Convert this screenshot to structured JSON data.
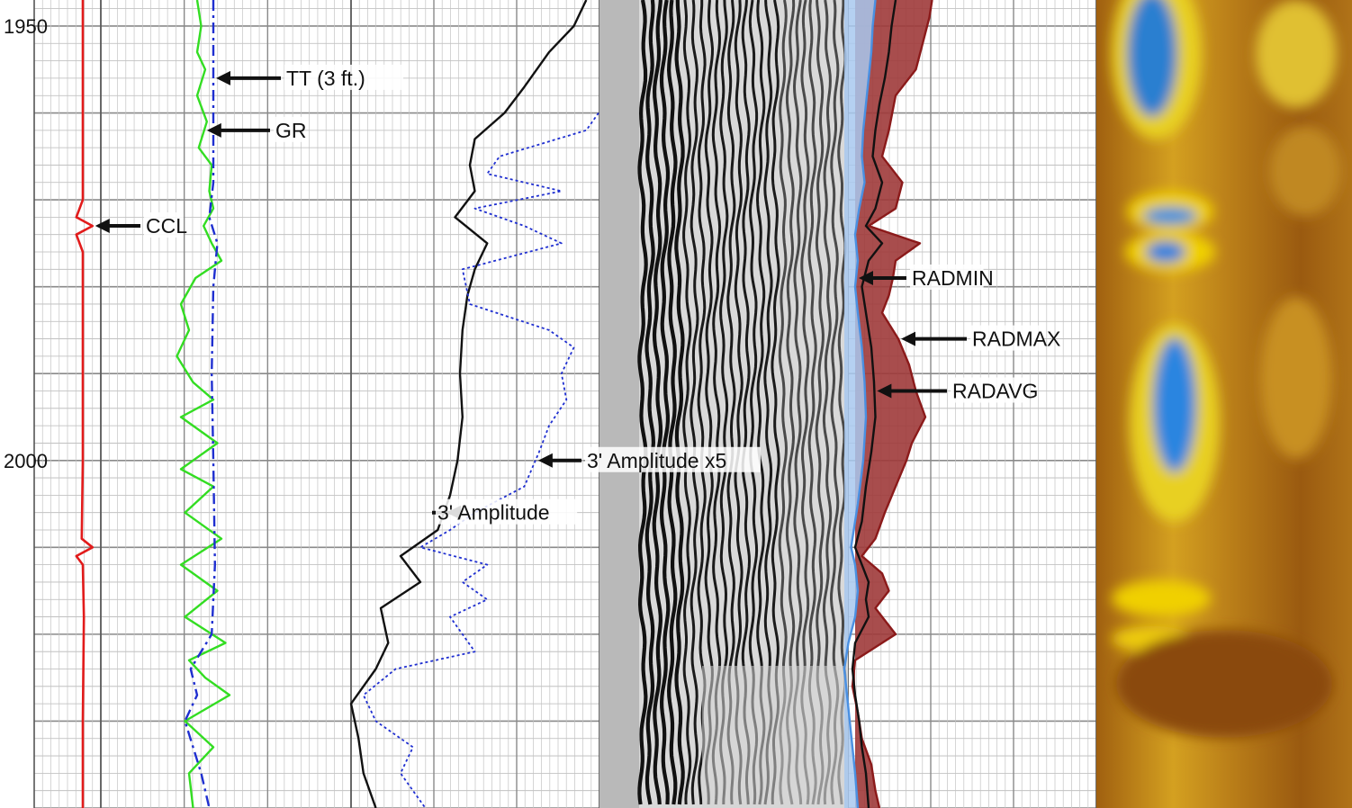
{
  "chart_data": {
    "type": "line",
    "y_axis": {
      "unit": "",
      "range": [
        1947,
        2040
      ],
      "reversed": true,
      "tick_labels": [
        "1950",
        "2000"
      ],
      "ticks": [
        1950,
        2000
      ]
    },
    "grid": true,
    "tracks": [
      {
        "curves": [
          {
            "name": "CCL",
            "color": "#e21b1b",
            "style": "solid",
            "depth": [
              1947,
              1970,
              1972,
              1973,
              1974,
              1976,
              2000,
              2009,
              2010,
              2011,
              2012,
              2018,
              2030,
              2040
            ],
            "value": [
              0.5,
              0.5,
              0.2,
              0.95,
              0.2,
              0.5,
              0.5,
              0.45,
              0.95,
              0.2,
              0.5,
              0.55,
              0.5,
              0.5
            ]
          }
        ]
      },
      {
        "curves": [
          {
            "name": "GR",
            "color": "#33dd22",
            "style": "solid",
            "depth": [
              1947,
              1950,
              1953,
              1955,
              1958,
              1961,
              1964,
              1966,
              1969,
              1971,
              1973,
              1975,
              1977,
              1979,
              1982,
              1985,
              1988,
              1991,
              1993,
              1995,
              1998,
              2001,
              2003,
              2006,
              2009,
              2012,
              2015,
              2018,
              2021,
              2023,
              2025,
              2027,
              2030,
              2033,
              2036,
              2040
            ],
            "value": [
              0.1,
              0.15,
              0.1,
              0.2,
              0.1,
              0.22,
              0.12,
              0.28,
              0.25,
              0.3,
              0.18,
              0.28,
              0.4,
              0.08,
              -0.1,
              0.0,
              -0.15,
              0.05,
              0.3,
              -0.1,
              0.35,
              -0.1,
              0.3,
              -0.05,
              0.4,
              -0.1,
              0.35,
              -0.05,
              0.45,
              0.0,
              0.2,
              0.5,
              -0.05,
              0.3,
              0.0,
              0.05
            ]
          },
          {
            "name": "TT (3 ft.)",
            "color": "#1f2fd0",
            "style": "dashed",
            "depth": [
              1947,
              1968,
              1972,
              1975,
              1980,
              1990,
              2000,
              2012,
              2020,
              2024,
              2027,
              2030,
              2033,
              2036,
              2040
            ],
            "value": [
              0.3,
              0.3,
              0.25,
              0.35,
              0.3,
              0.28,
              0.3,
              0.32,
              0.28,
              0.02,
              0.1,
              -0.05,
              0.05,
              0.15,
              0.25
            ]
          }
        ]
      },
      {
        "curves": [
          {
            "name": "3' Amplitude",
            "color": "#111111",
            "style": "solid",
            "depth": [
              1947,
              1950,
              1953,
              1957,
              1960,
              1963,
              1966,
              1969,
              1972,
              1975,
              1978,
              1981,
              1985,
              1990,
              1995,
              2000,
              2004,
              2008,
              2011,
              2014,
              2017,
              2021,
              2024,
              2028,
              2032,
              2036,
              2040
            ],
            "value": [
              0.95,
              0.9,
              0.8,
              0.7,
              0.62,
              0.5,
              0.48,
              0.5,
              0.42,
              0.55,
              0.5,
              0.47,
              0.45,
              0.44,
              0.45,
              0.43,
              0.4,
              0.35,
              0.2,
              0.28,
              0.12,
              0.15,
              0.1,
              0.0,
              0.03,
              0.05,
              0.1
            ]
          },
          {
            "name": "3' Amplitude x5",
            "color": "#1f2fd0",
            "style": "dotted",
            "depth": [
              1960,
              1962,
              1965,
              1967,
              1969,
              1971,
              1973,
              1975,
              1978,
              1982,
              1985,
              1987,
              1990,
              1993,
              1996,
              1999,
              2003,
              2006,
              2008,
              2010,
              2012,
              2014,
              2016,
              2018,
              2020,
              2022,
              2024,
              2027,
              2030,
              2033,
              2036,
              2040
            ],
            "value": [
              1.0,
              0.95,
              0.6,
              0.55,
              0.85,
              0.5,
              0.7,
              0.85,
              0.45,
              0.48,
              0.8,
              0.9,
              0.85,
              0.87,
              0.8,
              0.76,
              0.7,
              0.5,
              0.4,
              0.28,
              0.55,
              0.45,
              0.55,
              0.4,
              0.45,
              0.5,
              0.18,
              0.05,
              0.1,
              0.25,
              0.2,
              0.3
            ]
          }
        ]
      },
      {
        "curves": [
          {
            "name": "RADMAX",
            "color": "#8b1a1a",
            "style": "filled",
            "depth": [
              1947,
              1949,
              1952,
              1955,
              1958,
              1962,
              1965,
              1968,
              1971,
              1973,
              1975,
              1977,
              1979,
              1981,
              1983,
              1986,
              1989,
              1992,
              1995,
              1998,
              2000,
              2003,
              2006,
              2009,
              2011,
              2013,
              2015,
              2017,
              2020,
              2023,
              2026,
              2029,
              2032,
              2035,
              2038,
              2040
            ],
            "value": [
              0.57,
              0.55,
              0.5,
              0.45,
              0.3,
              0.25,
              0.2,
              0.35,
              0.3,
              0.1,
              0.48,
              0.3,
              0.28,
              0.25,
              0.2,
              0.32,
              0.4,
              0.45,
              0.52,
              0.42,
              0.38,
              0.3,
              0.22,
              0.15,
              0.05,
              0.2,
              0.25,
              0.15,
              0.3,
              0.0,
              -0.02,
              0.02,
              0.05,
              0.12,
              0.15,
              0.18
            ]
          },
          {
            "name": "RADAVG",
            "color": "#111111",
            "style": "solid",
            "depth": [
              1947,
              1950,
              1953,
              1956,
              1959,
              1962,
              1965,
              1968,
              1971,
              1973,
              1975,
              1977,
              1980,
              1983,
              1987,
              1991,
              1995,
              1999,
              2003,
              2007,
              2010,
              2012,
              2014,
              2016,
              2018,
              2021,
              2024,
              2027,
              2030,
              2033,
              2036,
              2040
            ],
            "value": [
              0.3,
              0.27,
              0.25,
              0.22,
              0.18,
              0.15,
              0.13,
              0.2,
              0.15,
              0.08,
              0.2,
              0.1,
              0.05,
              0.08,
              0.12,
              0.14,
              0.15,
              0.12,
              0.08,
              0.05,
              0.0,
              0.05,
              0.1,
              0.08,
              0.1,
              0.0,
              -0.02,
              0.0,
              0.03,
              0.05,
              0.08,
              0.1
            ]
          },
          {
            "name": "RADMIN",
            "color": "#4a90e2",
            "style": "filled",
            "depth": [
              1947,
              1950,
              1953,
              1956,
              1959,
              1962,
              1965,
              1968,
              1971,
              1974,
              1977,
              1980,
              1983,
              1987,
              1991,
              1995,
              2000,
              2005,
              2010,
              2012,
              2015,
              2018,
              2021,
              2024,
              2027,
              2030,
              2033,
              2036,
              2040
            ],
            "value": [
              0.15,
              0.13,
              0.12,
              0.1,
              0.08,
              0.06,
              0.05,
              0.07,
              0.03,
              0.0,
              0.02,
              0.0,
              0.02,
              0.05,
              0.07,
              0.08,
              0.06,
              0.02,
              -0.03,
              0.0,
              0.02,
              0.0,
              -0.05,
              -0.08,
              -0.06,
              -0.04,
              -0.02,
              0.0,
              0.02
            ]
          }
        ]
      }
    ]
  }
}
